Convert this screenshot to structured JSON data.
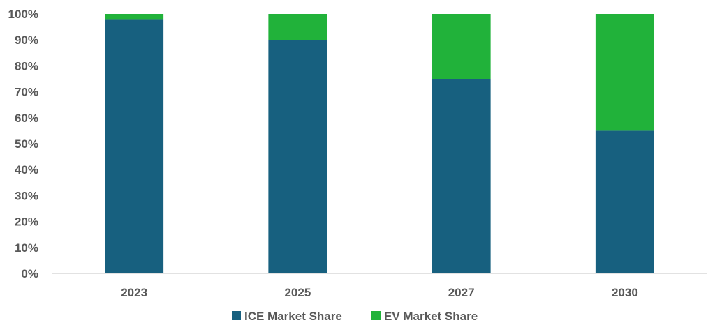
{
  "chart_data": {
    "type": "bar",
    "stacked": true,
    "categories": [
      "2023",
      "2025",
      "2027",
      "2030"
    ],
    "series": [
      {
        "name": "ICE Market Share",
        "values": [
          98,
          90,
          75,
          55
        ],
        "color": "#17607f"
      },
      {
        "name": "EV Market Share",
        "values": [
          2,
          10,
          25,
          45
        ],
        "color": "#21b23a"
      }
    ],
    "y_ticks": [
      "0%",
      "10%",
      "20%",
      "30%",
      "40%",
      "50%",
      "60%",
      "70%",
      "80%",
      "90%",
      "100%"
    ],
    "ylim": [
      0,
      100
    ],
    "grid": false,
    "legend_position": "bottom",
    "title": "",
    "xlabel": "",
    "ylabel": ""
  }
}
